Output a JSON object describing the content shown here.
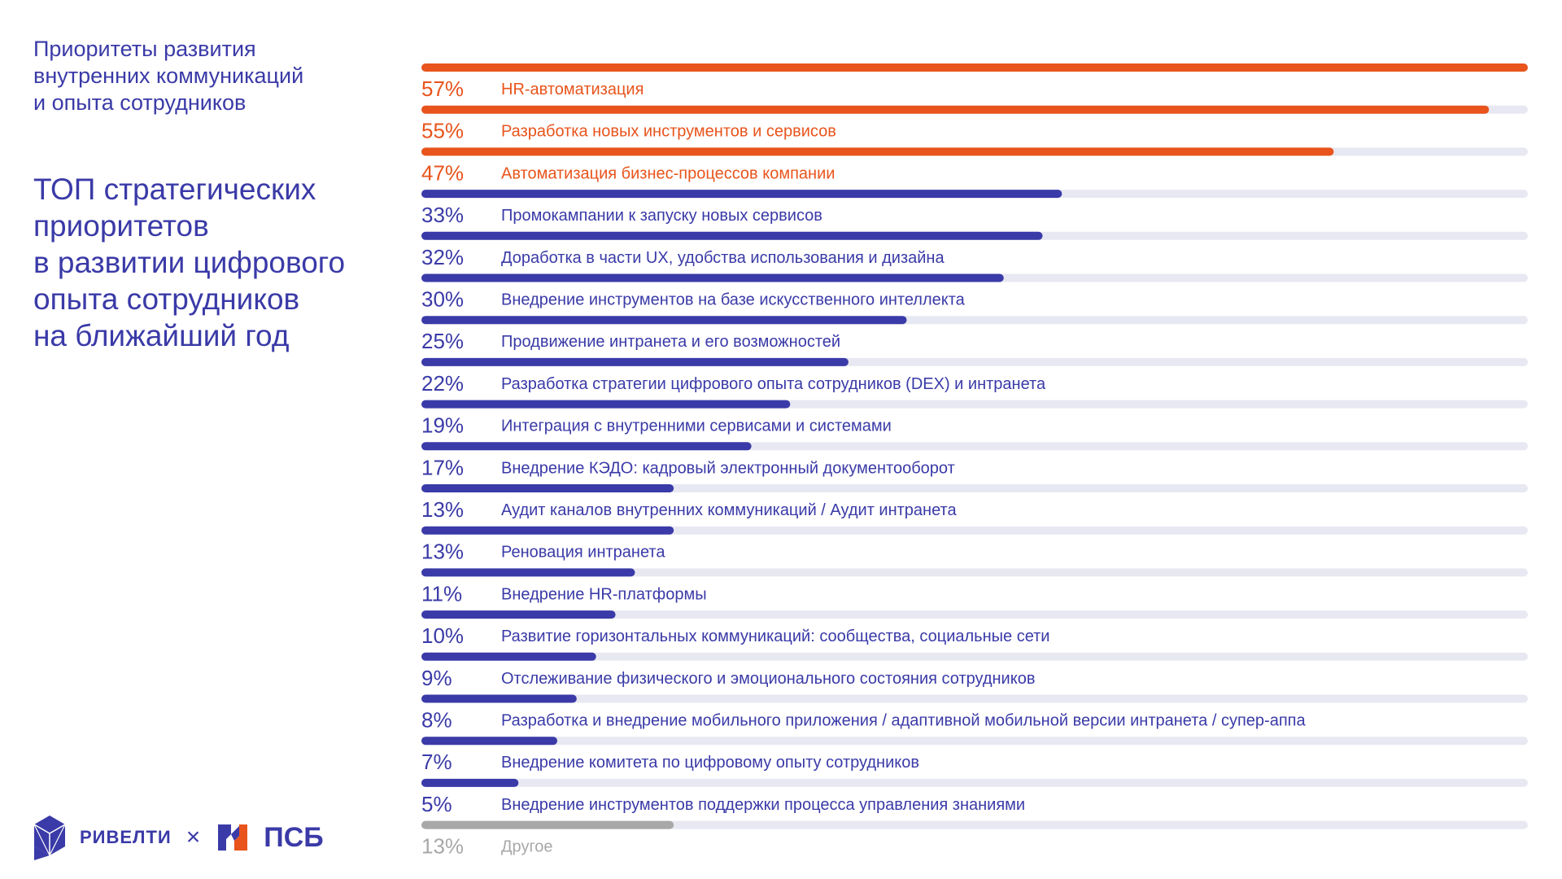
{
  "header": {
    "subtitle": "Приоритеты развития\nвнутренних коммуникаций\nи опыта сотрудников",
    "headline": "ТОП стратегических\nприоритетов\nв развитии цифрового\nопыта сотрудников\nна ближайший год"
  },
  "colors": {
    "highlight": "#e8541c",
    "primary": "#3a3aa8",
    "other": "#a8a8a8",
    "track": "#e8e8f2"
  },
  "chart_data": {
    "type": "bar",
    "orientation": "horizontal",
    "title": "ТОП стратегических приоритетов в развитии цифрового опыта сотрудников на ближайший год",
    "xlim": [
      0,
      57
    ],
    "categories": [
      "HR-автоматизация",
      "Разработка новых инструментов и сервисов",
      "Автоматизация бизнес-процессов компании",
      "Промокампании к запуску новых сервисов",
      "Доработка в части UX, удобства использования и дизайна",
      "Внедрение инструментов на базе искусственного интеллекта",
      "Продвижение интранета и его возможностей",
      "Разработка стратегии цифрового опыта сотрудников (DEX) и интранета",
      "Интеграция с внутренними сервисами и системами",
      "Внедрение КЭДО: кадровый электронный документооборот",
      "Аудит каналов внутренних коммуникаций / Аудит интранета",
      "Реновация интранета",
      "Внедрение HR-платформы",
      "Развитие горизонтальных коммуникаций: сообщества, социальные сети",
      "Отслеживание физического и эмоционального состояния сотрудников",
      "Разработка и внедрение мобильного приложения / адаптивной мобильной версии интранета / супер-аппа",
      "Внедрение комитета по цифровому опыту сотрудников",
      "Внедрение инструментов поддержки процесса управления знаниями",
      "Другое"
    ],
    "values": [
      57,
      55,
      47,
      33,
      32,
      30,
      25,
      22,
      19,
      17,
      13,
      13,
      11,
      10,
      9,
      8,
      7,
      5,
      13
    ],
    "value_labels": [
      "57%",
      "55%",
      "47%",
      "33%",
      "32%",
      "30%",
      "25%",
      "22%",
      "19%",
      "17%",
      "13%",
      "13%",
      "11%",
      "10%",
      "9%",
      "8%",
      "7%",
      "5%",
      "13%"
    ],
    "groups": [
      "highlight",
      "highlight",
      "highlight",
      "primary",
      "primary",
      "primary",
      "primary",
      "primary",
      "primary",
      "primary",
      "primary",
      "primary",
      "primary",
      "primary",
      "primary",
      "primary",
      "primary",
      "primary",
      "other"
    ]
  },
  "footer": {
    "brand_left": "РИВЕЛТИ",
    "separator": "×",
    "brand_right": "ПСБ",
    "logo_left_icon": "rivelty-cube-icon",
    "logo_right_icon": "psb-logo-icon"
  }
}
